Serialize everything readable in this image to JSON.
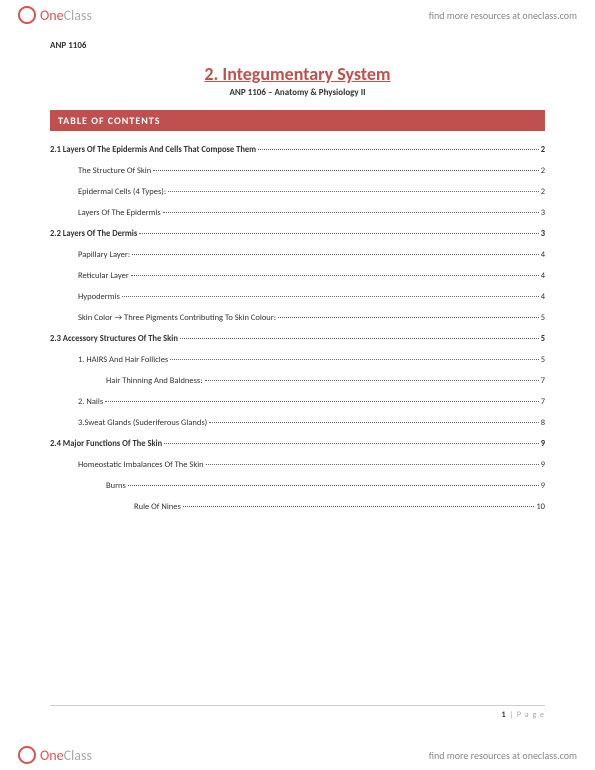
{
  "brand": {
    "one": "One",
    "class": "Class",
    "resources": "find more resources at oneclass.com"
  },
  "doc": {
    "course_code": "ANP 1106",
    "title": "2. Integumentary System",
    "subtitle": "ANP 1106 – Anatomy & Physiology II",
    "toc_header": "TABLE OF CONTENTS"
  },
  "toc": [
    {
      "indent": 0,
      "label": "2.1 Layers Of The Epidermis And Cells That Compose Them",
      "page": "2"
    },
    {
      "indent": 1,
      "label": "The Structure Of Skin",
      "page": "2"
    },
    {
      "indent": 1,
      "label": "Epidermal Cells (4 Types):",
      "page": "2"
    },
    {
      "indent": 1,
      "label": "Layers Of The Epidermis",
      "page": "3"
    },
    {
      "indent": 0,
      "label": "2.2 Layers Of The Dermis",
      "page": "3"
    },
    {
      "indent": 1,
      "label": "Papillary Layer:",
      "page": "4"
    },
    {
      "indent": 1,
      "label": "Reticular Layer",
      "page": "4"
    },
    {
      "indent": 1,
      "label": "Hypodermis",
      "page": "4"
    },
    {
      "indent": 1,
      "label": "Skin Color → Three Pigments Contributing To Skin Colour:",
      "page": "5"
    },
    {
      "indent": 0,
      "label": "2.3 Accessory Structures Of The Skin",
      "page": "5"
    },
    {
      "indent": 1,
      "label": "1. HAIRS And Hair Follicles",
      "page": "5"
    },
    {
      "indent": 2,
      "label": "Hair Thinning And Baldness:",
      "page": "7"
    },
    {
      "indent": 1,
      "label": "2. Nails",
      "page": "7"
    },
    {
      "indent": 1,
      "label": "3.Sweat Glands (Suderiferous Glands)",
      "page": "8"
    },
    {
      "indent": 0,
      "label": "2.4 Major Functions Of The Skin",
      "page": "9"
    },
    {
      "indent": 1,
      "label": "Homeostatic Imbalances Of The Skin",
      "page": "9"
    },
    {
      "indent": 2,
      "label": "Burns",
      "page": "9"
    },
    {
      "indent": 3,
      "label": "Rule Of Nines",
      "page": "10"
    }
  ],
  "footer": {
    "page_num": "1",
    "page_sep": "|",
    "page_label": "P a g e"
  }
}
